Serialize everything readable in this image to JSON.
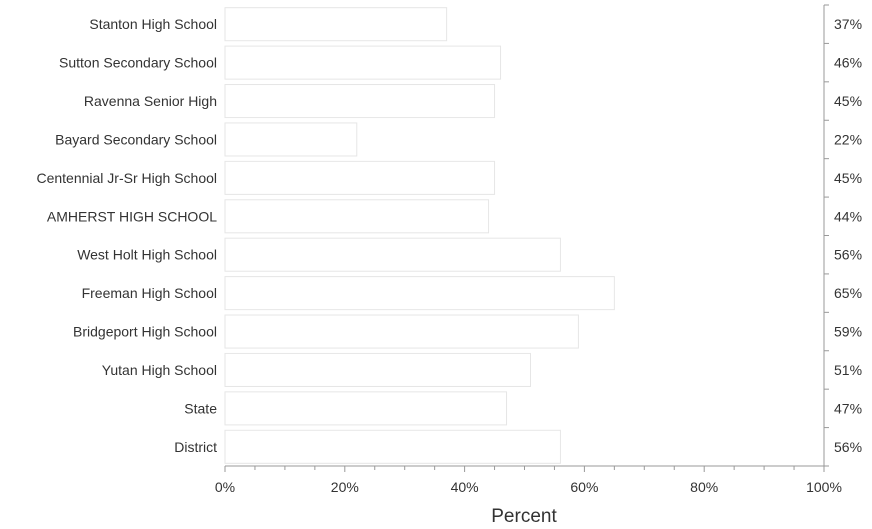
{
  "chart_data": {
    "type": "bar",
    "orientation": "horizontal",
    "categories": [
      "Stanton High School",
      "Sutton Secondary School",
      "Ravenna Senior High",
      "Bayard Secondary School",
      "Centennial Jr-Sr High School",
      "AMHERST HIGH SCHOOL",
      "West Holt High School",
      "Freeman High School",
      "Bridgeport High School",
      "Yutan High School",
      "State",
      "District"
    ],
    "values": [
      37,
      46,
      45,
      22,
      45,
      44,
      56,
      65,
      59,
      51,
      47,
      56
    ],
    "value_labels": [
      "37%",
      "46%",
      "45%",
      "22%",
      "45%",
      "44%",
      "56%",
      "65%",
      "59%",
      "51%",
      "47%",
      "56%"
    ],
    "xlabel": "Percent",
    "xlim": [
      0,
      100
    ],
    "x_ticks": [
      0,
      20,
      40,
      60,
      80,
      100
    ],
    "x_tick_labels": [
      "0%",
      "20%",
      "40%",
      "60%",
      "80%",
      "100%"
    ],
    "grid": false,
    "colors": {
      "bar_fill": "#ffffff",
      "bar_stroke": "#e6e6e6",
      "axis": "#999999",
      "text": "#333333"
    }
  }
}
